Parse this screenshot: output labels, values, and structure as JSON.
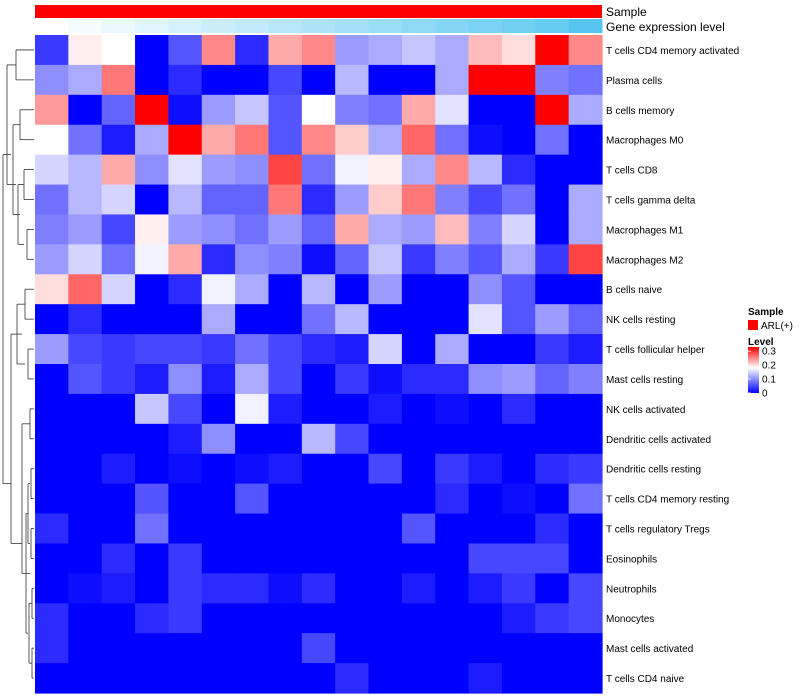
{
  "chart_data": {
    "type": "heatmap",
    "annotation_rows": [
      {
        "label": "Sample",
        "color_key": "sample"
      },
      {
        "label": "Gene expression level",
        "color_key": "gene_expression"
      }
    ],
    "rows": [
      "T cells CD4 memory activated",
      "Plasma cells",
      "B cells memory",
      "Macrophages M0",
      "T cells CD8",
      "T cells gamma delta",
      "Macrophages M1",
      "Macrophages M2",
      "B cells naive",
      "NK cells resting",
      "T cells follicular helper",
      "Mast cells resting",
      "NK cells activated",
      "Dendritic cells activated",
      "Dendritic cells resting",
      "T cells CD4 memory resting",
      "T cells regulatory  Tregs",
      "Eosinophils",
      "Neutrophils",
      "Monocytes",
      "Mast cells activated",
      "T cells CD4 naive"
    ],
    "n_columns": 17,
    "values": [
      [
        0.04,
        0.19,
        0.18,
        0.0,
        0.06,
        0.25,
        0.03,
        0.23,
        0.25,
        0.11,
        0.12,
        0.14,
        0.12,
        0.22,
        0.2,
        0.33,
        0.25
      ],
      [
        0.1,
        0.12,
        0.26,
        0.0,
        0.03,
        0.0,
        0.0,
        0.05,
        0.0,
        0.13,
        0.0,
        0.0,
        0.12,
        0.33,
        0.34,
        0.09,
        0.08
      ],
      [
        0.24,
        0.0,
        0.07,
        0.33,
        0.01,
        0.11,
        0.14,
        0.06,
        0.18,
        0.09,
        0.08,
        0.23,
        0.16,
        0.0,
        0.0,
        0.33,
        0.12
      ],
      [
        0.18,
        0.08,
        0.02,
        0.12,
        0.33,
        0.23,
        0.26,
        0.06,
        0.25,
        0.21,
        0.12,
        0.27,
        0.08,
        0.01,
        0.0,
        0.08,
        0.0
      ],
      [
        0.15,
        0.13,
        0.23,
        0.1,
        0.16,
        0.11,
        0.1,
        0.29,
        0.08,
        0.17,
        0.19,
        0.12,
        0.25,
        0.13,
        0.03,
        0.0,
        0.0
      ],
      [
        0.08,
        0.13,
        0.15,
        0.0,
        0.13,
        0.07,
        0.07,
        0.26,
        0.03,
        0.11,
        0.21,
        0.26,
        0.09,
        0.05,
        0.08,
        0.0,
        0.12
      ],
      [
        0.09,
        0.11,
        0.05,
        0.19,
        0.11,
        0.1,
        0.08,
        0.11,
        0.07,
        0.23,
        0.12,
        0.11,
        0.22,
        0.09,
        0.15,
        0.0,
        0.12
      ],
      [
        0.11,
        0.15,
        0.08,
        0.17,
        0.23,
        0.03,
        0.1,
        0.09,
        0.01,
        0.07,
        0.14,
        0.04,
        0.09,
        0.06,
        0.12,
        0.04,
        0.29
      ],
      [
        0.2,
        0.27,
        0.15,
        0.0,
        0.03,
        0.17,
        0.12,
        0.0,
        0.13,
        0.0,
        0.11,
        0.0,
        0.0,
        0.1,
        0.06,
        0.0,
        0.0
      ],
      [
        0.0,
        0.03,
        0.0,
        0.0,
        0.0,
        0.12,
        0.0,
        0.0,
        0.08,
        0.13,
        0.0,
        0.0,
        0.0,
        0.16,
        0.06,
        0.11,
        0.07
      ],
      [
        0.11,
        0.05,
        0.04,
        0.05,
        0.05,
        0.04,
        0.08,
        0.05,
        0.03,
        0.02,
        0.15,
        0.0,
        0.12,
        0.0,
        0.0,
        0.04,
        0.02
      ],
      [
        0.0,
        0.06,
        0.04,
        0.02,
        0.1,
        0.02,
        0.12,
        0.05,
        0.0,
        0.04,
        0.01,
        0.03,
        0.03,
        0.1,
        0.11,
        0.07,
        0.09
      ],
      [
        0.0,
        0.0,
        0.0,
        0.14,
        0.05,
        0.0,
        0.17,
        0.02,
        0.0,
        0.0,
        0.02,
        0.0,
        0.01,
        0.0,
        0.03,
        0.0,
        0.0
      ],
      [
        0.0,
        0.0,
        0.0,
        0.0,
        0.02,
        0.1,
        0.0,
        0.0,
        0.13,
        0.05,
        0.0,
        0.0,
        0.0,
        0.0,
        0.0,
        0.0,
        0.0
      ],
      [
        0.0,
        0.0,
        0.02,
        0.0,
        0.01,
        0.0,
        0.01,
        0.02,
        0.0,
        0.0,
        0.05,
        0.0,
        0.04,
        0.02,
        0.0,
        0.03,
        0.04
      ],
      [
        0.0,
        0.0,
        0.0,
        0.06,
        0.0,
        0.0,
        0.06,
        0.0,
        0.0,
        0.0,
        0.0,
        0.0,
        0.03,
        0.0,
        0.01,
        0.0,
        0.08
      ],
      [
        0.03,
        0.0,
        0.0,
        0.08,
        0.0,
        0.0,
        0.0,
        0.0,
        0.0,
        0.0,
        0.0,
        0.06,
        0.0,
        0.0,
        0.0,
        0.03,
        0.0
      ],
      [
        0.0,
        0.0,
        0.03,
        0.0,
        0.04,
        0.0,
        0.0,
        0.0,
        0.0,
        0.0,
        0.0,
        0.0,
        0.0,
        0.05,
        0.05,
        0.05,
        0.0
      ],
      [
        0.0,
        0.01,
        0.02,
        0.0,
        0.04,
        0.03,
        0.03,
        0.01,
        0.03,
        0.0,
        0.0,
        0.02,
        0.0,
        0.02,
        0.04,
        0.0,
        0.05
      ],
      [
        0.03,
        0.0,
        0.0,
        0.03,
        0.04,
        0.0,
        0.0,
        0.0,
        0.0,
        0.0,
        0.0,
        0.0,
        0.0,
        0.0,
        0.02,
        0.04,
        0.05
      ],
      [
        0.03,
        0.0,
        0.0,
        0.0,
        0.0,
        0.0,
        0.0,
        0.0,
        0.05,
        0.0,
        0.0,
        0.0,
        0.0,
        0.0,
        0.0,
        0.0,
        0.0
      ],
      [
        0.0,
        0.0,
        0.0,
        0.0,
        0.0,
        0.0,
        0.0,
        0.0,
        0.0,
        0.03,
        0.0,
        0.0,
        0.0,
        0.02,
        0.0,
        0.0,
        0.0
      ]
    ],
    "gene_expression_annotation": [
      0.0,
      0.06,
      0.12,
      0.18,
      0.24,
      0.3,
      0.36,
      0.42,
      0.48,
      0.54,
      0.6,
      0.66,
      0.72,
      0.78,
      0.84,
      0.9,
      1.0
    ],
    "color_scale": {
      "min": 0,
      "max": 0.33,
      "stops": [
        {
          "value": 0,
          "color": "#0000ff"
        },
        {
          "value": 0.18,
          "color": "#ffffff"
        },
        {
          "value": 0.33,
          "color": "#ff0000"
        }
      ]
    },
    "gene_expression_colors": {
      "low": "#ffffff",
      "high": "#56c6f0"
    },
    "legend": {
      "sample_title": "Sample",
      "sample_entries": [
        {
          "label": "ARL(+)",
          "color": "#ff0000"
        }
      ],
      "level_title": "Level",
      "level_ticks": [
        {
          "label": "0.3",
          "value": 0.3
        },
        {
          "label": "0.2",
          "value": 0.2
        },
        {
          "label": "0.1",
          "value": 0.1
        },
        {
          "label": "0",
          "value": 0
        }
      ],
      "placement": "right"
    },
    "dendrogram": {
      "side": "left",
      "shown": true
    }
  }
}
